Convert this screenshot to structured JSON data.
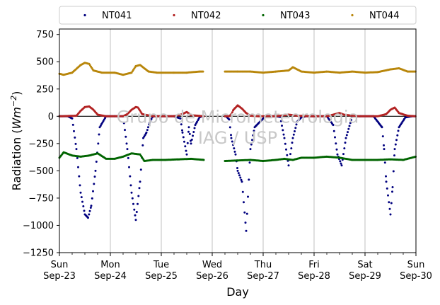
{
  "chart_data": {
    "type": "scatter",
    "ylabel": "Radiation (Wm⁻²)",
    "xlabel": "Day",
    "ylim": [
      -1250,
      800
    ],
    "xlim": [
      "2018-09-23",
      "2018-09-30"
    ],
    "yticks": [
      750,
      500,
      250,
      0,
      -250,
      -500,
      -750,
      -1000,
      -1250
    ],
    "xticks": [
      {
        "date": "2018-09-23",
        "day": "Sun",
        "label": "Sep-23"
      },
      {
        "date": "2018-09-24",
        "day": "Mon",
        "label": "Sep-24"
      },
      {
        "date": "2018-09-25",
        "day": "Tue",
        "label": "Sep-25"
      },
      {
        "date": "2018-09-26",
        "day": "Wed",
        "label": "Sep-26"
      },
      {
        "date": "2018-09-27",
        "day": "Thu",
        "label": "Sep-27"
      },
      {
        "date": "2018-09-28",
        "day": "Fri",
        "label": "Sep-28"
      },
      {
        "date": "2018-09-29",
        "day": "Sat",
        "label": "Sep-29"
      },
      {
        "date": "2018-09-30",
        "day": "Sun",
        "label": "Sep-30"
      }
    ],
    "grid": "vertical",
    "legend": "top",
    "reference_line_y": 0,
    "watermark": [
      "Grupo de Micrometeorologia",
      "IAG / USP"
    ],
    "series": [
      {
        "name": "NT041",
        "color": "#00007f",
        "x": [
          "2018-09-23 00:00",
          "2018-09-23 04:00",
          "2018-09-23 06:00",
          "2018-09-23 08:00",
          "2018-09-23 10:00",
          "2018-09-23 12:00",
          "2018-09-23 13:30",
          "2018-09-23 15:00",
          "2018-09-23 17:00",
          "2018-09-23 19:00",
          "2018-09-23 22:00",
          "2018-09-24 02:00",
          "2018-09-24 06:00",
          "2018-09-24 08:00",
          "2018-09-24 10:00",
          "2018-09-24 12:00",
          "2018-09-24 14:00",
          "2018-09-24 15:30",
          "2018-09-24 17:00",
          "2018-09-24 18:30",
          "2018-09-24 20:00",
          "2018-09-25 00:00",
          "2018-09-25 06:00",
          "2018-09-25 09:00",
          "2018-09-25 10:00",
          "2018-09-25 12:00",
          "2018-09-25 13:00",
          "2018-09-25 14:00",
          "2018-09-25 16:00",
          "2018-09-25 18:00",
          "2018-09-25 19:00",
          "2018-09-25 20:00",
          "2018-09-25 22:00",
          "2018-09-26 00:00",
          "2018-09-26 03:00",
          "2018-09-26 06:00",
          "2018-09-26 06:30",
          "2018-09-26 08:00",
          "2018-09-26 09:00",
          "2018-09-26 11:00",
          "2018-09-26 12:00",
          "2018-09-26 14:00",
          "2018-09-26 16:00",
          "2018-09-26 18:00",
          "2018-09-26 20:00",
          "2018-09-27 01:00",
          "2018-09-27 06:00",
          "2018-09-27 08:00",
          "2018-09-27 10:00",
          "2018-09-27 12:00",
          "2018-09-27 14:00",
          "2018-09-27 16:00",
          "2018-09-27 18:00",
          "2018-09-27 20:00",
          "2018-09-28 00:00",
          "2018-09-28 06:00",
          "2018-09-28 09:00",
          "2018-09-28 11:00",
          "2018-09-28 13:00",
          "2018-09-28 15:00",
          "2018-09-28 18:00",
          "2018-09-28 22:00",
          "2018-09-29 04:00",
          "2018-09-29 08:00",
          "2018-09-29 09:00",
          "2018-09-29 10:00",
          "2018-09-29 12:00",
          "2018-09-29 13:00",
          "2018-09-29 14:00",
          "2018-09-29 16:00",
          "2018-09-29 19:00",
          "2018-09-29 22:00",
          "2018-09-30 00:00"
        ],
        "y": [
          0,
          0,
          -20,
          -300,
          -700,
          -900,
          -930,
          -820,
          -500,
          -100,
          0,
          0,
          0,
          -300,
          -700,
          -950,
          -600,
          -200,
          -150,
          -60,
          0,
          0,
          0,
          -20,
          -150,
          -350,
          -100,
          -250,
          -80,
          -10,
          0,
          0,
          0,
          0,
          0,
          0,
          0,
          -30,
          -200,
          -350,
          -500,
          -600,
          -1050,
          -300,
          -100,
          0,
          0,
          -5,
          -200,
          -450,
          -200,
          -50,
          -10,
          0,
          0,
          0,
          -80,
          -350,
          -450,
          -200,
          0,
          0,
          0,
          -100,
          -300,
          -600,
          -900,
          -650,
          -300,
          -100,
          -10,
          0,
          0
        ]
      },
      {
        "name": "NT042",
        "color": "#b22222",
        "x": [
          "2018-09-23 00:00",
          "2018-09-23 08:00",
          "2018-09-23 10:00",
          "2018-09-23 12:00",
          "2018-09-23 14:00",
          "2018-09-23 16:00",
          "2018-09-23 18:00",
          "2018-09-23 22:00",
          "2018-09-24 06:00",
          "2018-09-24 08:00",
          "2018-09-24 10:00",
          "2018-09-24 12:00",
          "2018-09-24 13:00",
          "2018-09-24 15:00",
          "2018-09-24 20:00",
          "2018-09-25 06:00",
          "2018-09-25 10:00",
          "2018-09-25 12:00",
          "2018-09-25 14:00",
          "2018-09-25 20:00",
          "2018-09-26 06:00",
          "2018-09-26 08:00",
          "2018-09-26 09:00",
          "2018-09-26 10:00",
          "2018-09-26 12:00",
          "2018-09-26 14:00",
          "2018-09-26 16:00",
          "2018-09-26 18:00",
          "2018-09-26 22:00",
          "2018-09-27 06:00",
          "2018-09-27 12:00",
          "2018-09-27 16:00",
          "2018-09-27 22:00",
          "2018-09-28 06:00",
          "2018-09-28 12:00",
          "2018-09-28 14:00",
          "2018-09-28 20:00",
          "2018-09-29 06:00",
          "2018-09-29 10:00",
          "2018-09-29 12:00",
          "2018-09-29 14:00",
          "2018-09-29 16:00",
          "2018-09-29 20:00",
          "2018-09-30 00:00"
        ],
        "y": [
          0,
          5,
          50,
          85,
          90,
          60,
          15,
          0,
          0,
          20,
          60,
          85,
          80,
          20,
          0,
          0,
          20,
          40,
          10,
          0,
          0,
          0,
          20,
          60,
          100,
          70,
          30,
          5,
          0,
          0,
          15,
          5,
          0,
          0,
          30,
          15,
          0,
          0,
          20,
          60,
          80,
          30,
          5,
          0
        ]
      },
      {
        "name": "NT043",
        "color": "#006400",
        "x": [
          "2018-09-23 00:00",
          "2018-09-23 02:00",
          "2018-09-23 06:00",
          "2018-09-23 10:00",
          "2018-09-23 14:00",
          "2018-09-23 18:00",
          "2018-09-23 22:00",
          "2018-09-24 02:00",
          "2018-09-24 06:00",
          "2018-09-24 10:00",
          "2018-09-24 14:00",
          "2018-09-24 16:00",
          "2018-09-24 20:00",
          "2018-09-25 02:00",
          "2018-09-25 08:00",
          "2018-09-25 14:00",
          "2018-09-25 20:00",
          "2018-09-26 00:00",
          "2018-09-26 06:00",
          "2018-09-26 12:00",
          "2018-09-26 18:00",
          "2018-09-27 00:00",
          "2018-09-27 06:00",
          "2018-09-27 10:00",
          "2018-09-27 14:00",
          "2018-09-27 18:00",
          "2018-09-28 00:00",
          "2018-09-28 06:00",
          "2018-09-28 12:00",
          "2018-09-28 18:00",
          "2018-09-29 00:00",
          "2018-09-29 06:00",
          "2018-09-29 12:00",
          "2018-09-29 18:00",
          "2018-09-30 00:00"
        ],
        "y": [
          -380,
          -330,
          -360,
          -370,
          -360,
          -340,
          -390,
          -390,
          -370,
          -340,
          -350,
          -410,
          -400,
          -400,
          -395,
          -390,
          -400,
          -405,
          -410,
          -405,
          -400,
          -410,
          -400,
          -390,
          -400,
          -380,
          -380,
          -370,
          -380,
          -400,
          -400,
          -400,
          -395,
          -400,
          -370
        ]
      },
      {
        "name": "NT044",
        "color": "#b8860b",
        "x": [
          "2018-09-23 00:00",
          "2018-09-23 02:00",
          "2018-09-23 06:00",
          "2018-09-23 10:00",
          "2018-09-23 12:00",
          "2018-09-23 14:00",
          "2018-09-23 16:00",
          "2018-09-23 20:00",
          "2018-09-24 02:00",
          "2018-09-24 06:00",
          "2018-09-24 10:00",
          "2018-09-24 12:00",
          "2018-09-24 14:00",
          "2018-09-24 18:00",
          "2018-09-24 22:00",
          "2018-09-25 06:00",
          "2018-09-25 12:00",
          "2018-09-25 18:00",
          "2018-09-26 00:00",
          "2018-09-26 06:00",
          "2018-09-26 12:00",
          "2018-09-26 18:00",
          "2018-09-27 00:00",
          "2018-09-27 06:00",
          "2018-09-27 12:00",
          "2018-09-27 14:00",
          "2018-09-27 18:00",
          "2018-09-28 00:00",
          "2018-09-28 06:00",
          "2018-09-28 12:00",
          "2018-09-28 18:00",
          "2018-09-29 00:00",
          "2018-09-29 06:00",
          "2018-09-29 12:00",
          "2018-09-29 16:00",
          "2018-09-29 20:00",
          "2018-09-30 00:00"
        ],
        "y": [
          390,
          380,
          400,
          470,
          490,
          480,
          420,
          400,
          400,
          380,
          400,
          460,
          470,
          410,
          400,
          400,
          400,
          410,
          410,
          410,
          410,
          410,
          400,
          410,
          420,
          450,
          410,
          400,
          410,
          400,
          410,
          400,
          405,
          430,
          440,
          410,
          410
        ]
      }
    ],
    "gaps": [
      [
        "2018-09-25 20:00",
        "2018-09-26 06:00"
      ]
    ]
  }
}
